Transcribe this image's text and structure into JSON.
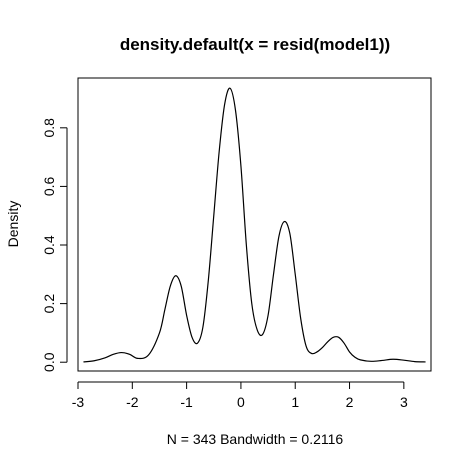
{
  "chart_data": {
    "type": "line",
    "title": "density.default(x = resid(model1))",
    "xlabel": "N = 343   Bandwidth = 0.2116",
    "ylabel": "Density",
    "xlim": [
      -3,
      3.5
    ],
    "ylim": [
      -0.03,
      0.97
    ],
    "x_ticks": [
      -3,
      -2,
      -1,
      0,
      1,
      2,
      3
    ],
    "y_ticks": [
      0.0,
      0.2,
      0.4,
      0.6,
      0.8
    ],
    "x_tick_labels": [
      "-3",
      "-2",
      "-1",
      "0",
      "1",
      "2",
      "3"
    ],
    "y_tick_labels": [
      "0.0",
      "0.2",
      "0.4",
      "0.6",
      "0.8"
    ],
    "grid": false,
    "box": true,
    "series": [
      {
        "line_color": "#000000",
        "x": [
          -2.9,
          -2.7,
          -2.5,
          -2.35,
          -2.2,
          -2.05,
          -1.9,
          -1.7,
          -1.5,
          -1.4,
          -1.3,
          -1.2,
          -1.1,
          -1.0,
          -0.9,
          -0.8,
          -0.7,
          -0.6,
          -0.5,
          -0.4,
          -0.3,
          -0.2,
          -0.1,
          0.0,
          0.1,
          0.2,
          0.3,
          0.4,
          0.5,
          0.6,
          0.7,
          0.8,
          0.9,
          1.0,
          1.1,
          1.2,
          1.3,
          1.4,
          1.5,
          1.6,
          1.7,
          1.8,
          1.9,
          2.0,
          2.1,
          2.2,
          2.4,
          2.6,
          2.8,
          3.0,
          3.2,
          3.4
        ],
        "y": [
          0.001,
          0.005,
          0.015,
          0.027,
          0.033,
          0.027,
          0.013,
          0.025,
          0.1,
          0.18,
          0.26,
          0.295,
          0.26,
          0.16,
          0.085,
          0.065,
          0.12,
          0.28,
          0.5,
          0.72,
          0.88,
          0.935,
          0.86,
          0.67,
          0.4,
          0.2,
          0.11,
          0.095,
          0.16,
          0.3,
          0.43,
          0.48,
          0.44,
          0.3,
          0.15,
          0.055,
          0.03,
          0.035,
          0.05,
          0.07,
          0.085,
          0.085,
          0.065,
          0.035,
          0.017,
          0.008,
          0.003,
          0.006,
          0.01,
          0.007,
          0.002,
          0.001
        ]
      }
    ]
  }
}
